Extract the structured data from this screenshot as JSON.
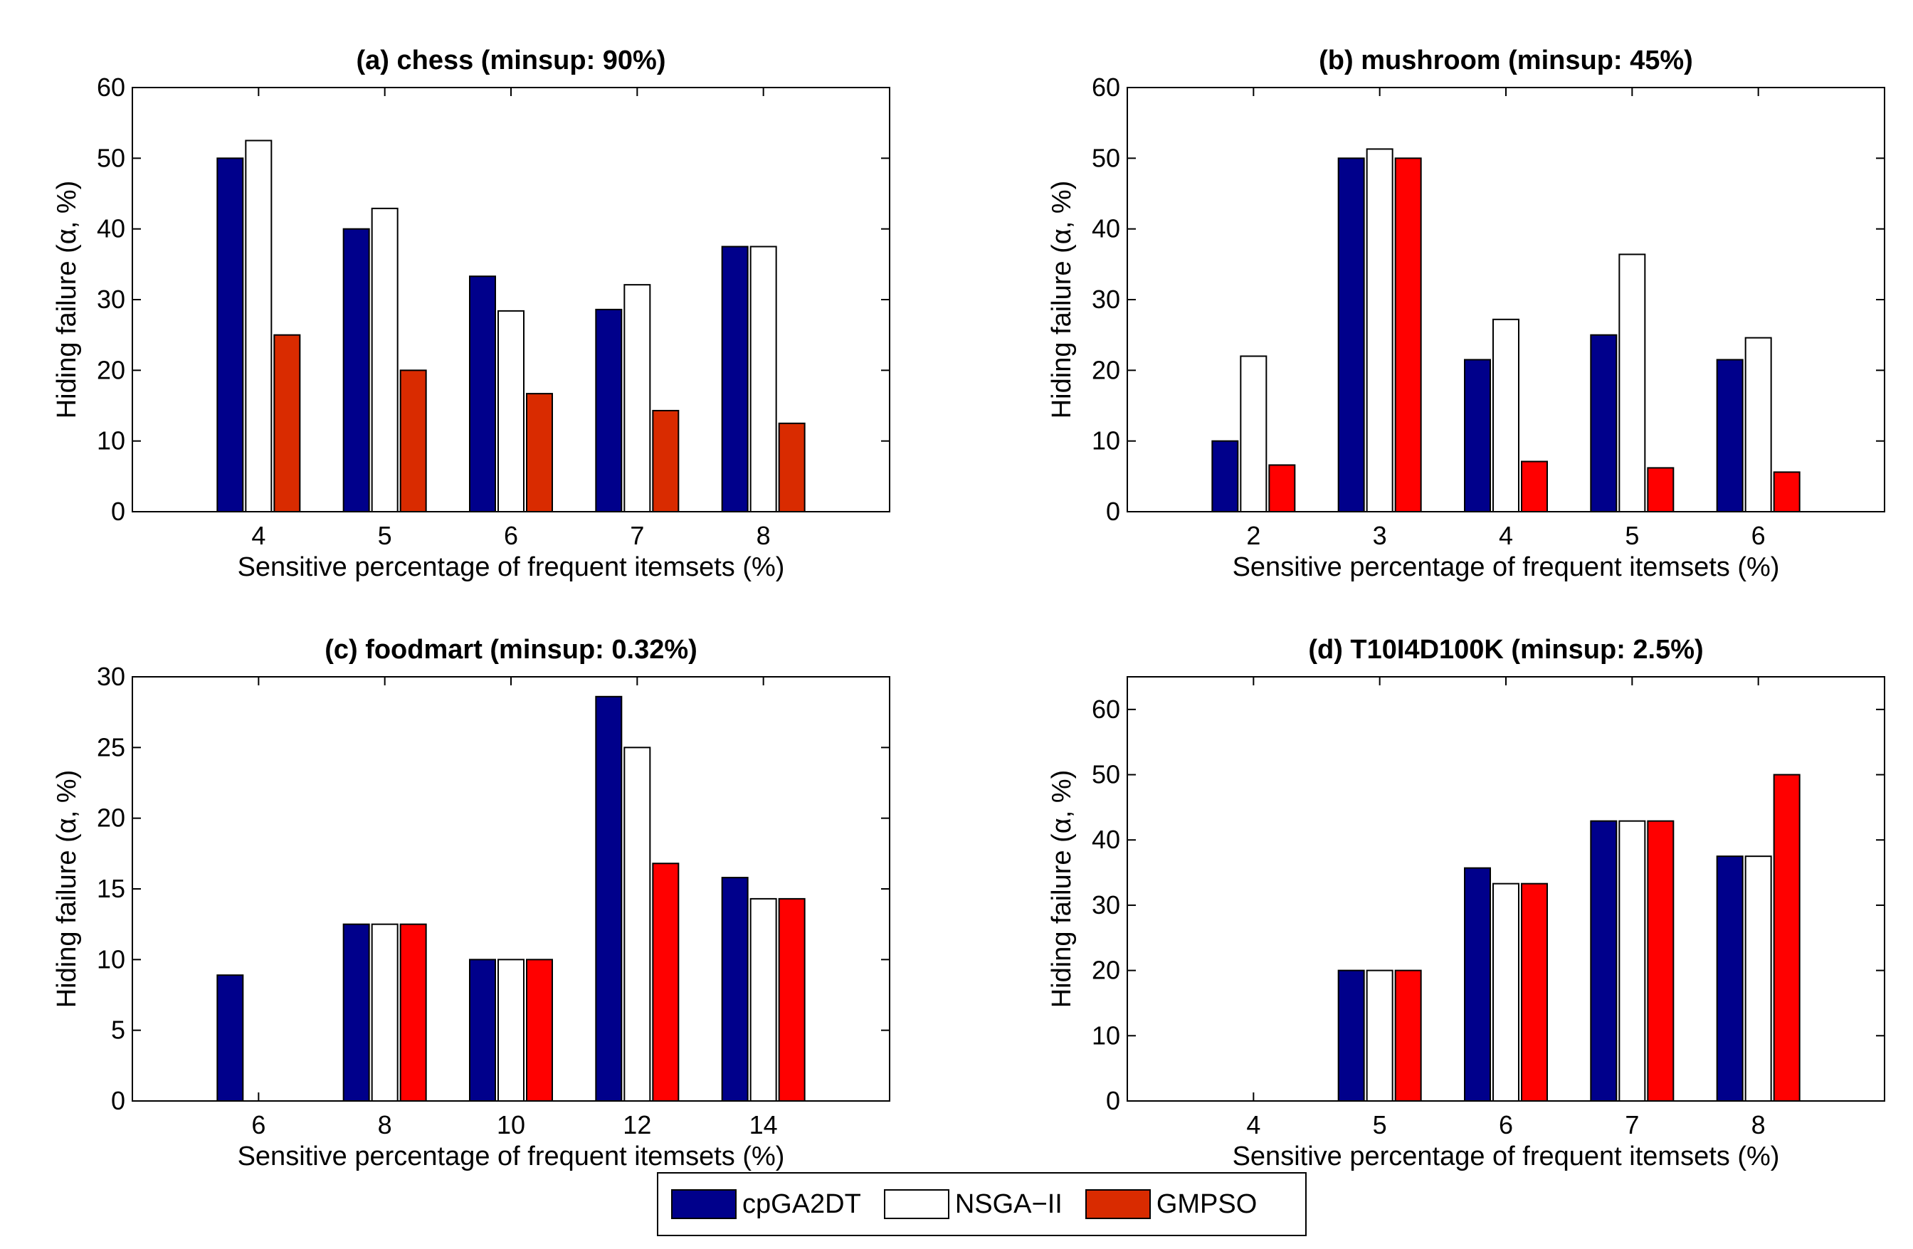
{
  "colors": {
    "cpGA2DT": "#00008b",
    "NSGA-II": "#ffffff",
    "GMPSO_chess": "#d92b00",
    "GMPSO": "#ff0000",
    "legend_GMPSO": "#d92b00"
  },
  "legend": {
    "items": [
      {
        "label": "cpGA2DT",
        "color": "#00008b"
      },
      {
        "label": "NSGA−II",
        "color": "#ffffff"
      },
      {
        "label": "GMPSO",
        "color": "#d92b00"
      }
    ]
  },
  "chart_data": [
    {
      "type": "bar",
      "title": "(a) chess (minsup: 90%)",
      "xlabel": "Sensitive percentage of frequent itemsets (%)",
      "ylabel": "Hiding failure (α, %)",
      "categories": [
        "4",
        "5",
        "6",
        "7",
        "8"
      ],
      "ylim": [
        0,
        60
      ],
      "yticks": [
        "0",
        "10",
        "20",
        "30",
        "40",
        "50",
        "60"
      ],
      "gmpso_color": "#d92b00",
      "series": [
        {
          "name": "cpGA2DT",
          "values": [
            50,
            40,
            33.3,
            28.6,
            37.5
          ]
        },
        {
          "name": "NSGA-II",
          "values": [
            52.5,
            42.9,
            28.4,
            32.1,
            37.5
          ]
        },
        {
          "name": "GMPSO",
          "values": [
            25,
            20,
            16.7,
            14.3,
            12.5
          ]
        }
      ]
    },
    {
      "type": "bar",
      "title": "(b) mushroom (minsup: 45%)",
      "xlabel": "Sensitive percentage of frequent itemsets (%)",
      "ylabel": "Hiding failure (α, %)",
      "categories": [
        "2",
        "3",
        "4",
        "5",
        "6"
      ],
      "ylim": [
        0,
        60
      ],
      "yticks": [
        "0",
        "10",
        "20",
        "30",
        "40",
        "50",
        "60"
      ],
      "gmpso_color": "#ff0000",
      "series": [
        {
          "name": "cpGA2DT",
          "values": [
            10,
            50,
            21.5,
            25,
            21.5
          ]
        },
        {
          "name": "NSGA-II",
          "values": [
            22,
            51.3,
            27.2,
            36.4,
            24.6
          ]
        },
        {
          "name": "GMPSO",
          "values": [
            6.6,
            50,
            7.1,
            6.2,
            5.6
          ]
        }
      ]
    },
    {
      "type": "bar",
      "title": "(c) foodmart (minsup: 0.32%)",
      "xlabel": "Sensitive percentage of frequent itemsets (%)",
      "ylabel": "Hiding failure (α, %)",
      "categories": [
        "6",
        "8",
        "10",
        "12",
        "14"
      ],
      "ylim": [
        0,
        30
      ],
      "yticks": [
        "0",
        "5",
        "10",
        "15",
        "20",
        "25",
        "30"
      ],
      "gmpso_color": "#ff0000",
      "series": [
        {
          "name": "cpGA2DT",
          "values": [
            8.9,
            12.5,
            10,
            28.6,
            15.8
          ]
        },
        {
          "name": "NSGA-II",
          "values": [
            0,
            12.5,
            10,
            25,
            14.3
          ]
        },
        {
          "name": "GMPSO",
          "values": [
            0,
            12.5,
            10,
            16.8,
            14.3
          ]
        }
      ]
    },
    {
      "type": "bar",
      "title": "(d) T10I4D100K (minsup: 2.5%)",
      "xlabel": "Sensitive percentage of frequent itemsets (%)",
      "ylabel": "Hiding failure (α, %)",
      "categories": [
        "4",
        "5",
        "6",
        "7",
        "8"
      ],
      "ylim": [
        0,
        65
      ],
      "yticks": [
        "0",
        "10",
        "20",
        "30",
        "40",
        "50",
        "60"
      ],
      "gmpso_color": "#ff0000",
      "series": [
        {
          "name": "cpGA2DT",
          "values": [
            0,
            20,
            35.7,
            42.9,
            37.5
          ]
        },
        {
          "name": "NSGA-II",
          "values": [
            0,
            20,
            33.3,
            42.9,
            37.5
          ]
        },
        {
          "name": "GMPSO",
          "values": [
            0,
            20,
            33.3,
            42.9,
            50
          ]
        }
      ]
    }
  ]
}
